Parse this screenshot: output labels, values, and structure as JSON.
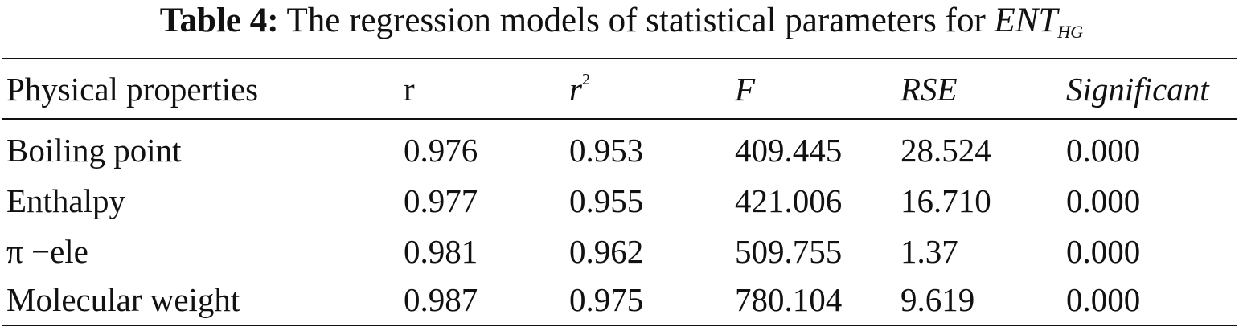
{
  "caption": {
    "label": "Table 4:",
    "text": "The regression models of statistical parameters for",
    "symbol": "ENT",
    "subscript": "HG"
  },
  "table": {
    "headers": [
      "Physical properties",
      "r",
      "r",
      "F",
      "RSE",
      "Significant"
    ],
    "header_superscript": "2",
    "rows": [
      [
        "Boiling point",
        "0.976",
        "0.953",
        "409.445",
        "28.524",
        "0.000"
      ],
      [
        "Enthalpy",
        "0.977",
        "0.955",
        "421.006",
        "16.710",
        "0.000"
      ],
      [
        "π −ele",
        "0.981",
        "0.962",
        "509.755",
        "1.37",
        "0.000"
      ],
      [
        "Molecular weight",
        "0.987",
        "0.975",
        "780.104",
        "9.619",
        "0.000"
      ]
    ]
  }
}
